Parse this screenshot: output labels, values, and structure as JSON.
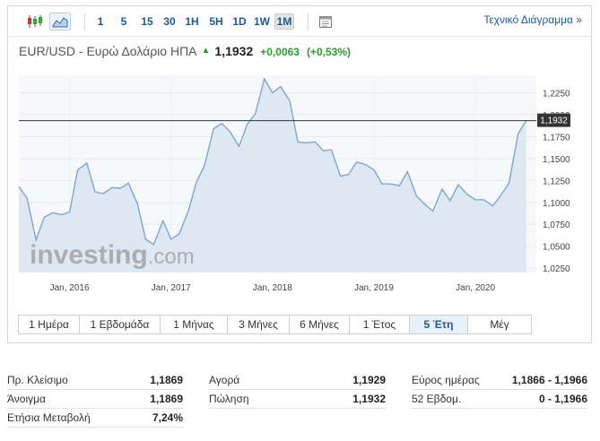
{
  "toolbar": {
    "icons": [
      "candlestick-icon",
      "area-chart-icon",
      "calendar-icon"
    ],
    "timeframes": [
      "1",
      "5",
      "15",
      "30",
      "1H",
      "5H",
      "1D",
      "1W",
      "1M"
    ],
    "active_timeframe": "1M",
    "technical_link": "Τεχνικό Διάγραμμα »"
  },
  "quote": {
    "name": "EUR/USD - Ευρώ Δολάριο ΗΠΑ",
    "last": "1,1932",
    "change": "+0,0063",
    "change_pct": "(+0,53%)",
    "up_color": "#2a9d2a"
  },
  "chart_data": {
    "type": "area",
    "x_ticks": [
      "Jan, 2016",
      "Jan, 2017",
      "Jan, 2018",
      "Jan, 2019",
      "Jan, 2020"
    ],
    "y_ticks": [
      "1,0250",
      "1,0500",
      "1,0750",
      "1,1000",
      "1,1250",
      "1,1500",
      "1,1750",
      "1,2000",
      "1,2250"
    ],
    "ylim": [
      1.02,
      1.245
    ],
    "x_start": 2015.5,
    "x_end": 2020.6,
    "current_value": 1.1932,
    "current_label": "1,1932",
    "watermark": "investing.com",
    "line_color": "#7ea6cf",
    "fill_color": "#dde8f3",
    "series": [
      {
        "values": [
          [
            2015.5,
            1.118
          ],
          [
            2015.58,
            1.105
          ],
          [
            2015.67,
            1.057
          ],
          [
            2015.75,
            1.083
          ],
          [
            2015.83,
            1.088
          ],
          [
            2015.92,
            1.086
          ],
          [
            2016.0,
            1.089
          ],
          [
            2016.08,
            1.137
          ],
          [
            2016.17,
            1.145
          ],
          [
            2016.25,
            1.112
          ],
          [
            2016.33,
            1.11
          ],
          [
            2016.42,
            1.117
          ],
          [
            2016.5,
            1.116
          ],
          [
            2016.58,
            1.122
          ],
          [
            2016.67,
            1.098
          ],
          [
            2016.75,
            1.058
          ],
          [
            2016.83,
            1.052
          ],
          [
            2016.92,
            1.079
          ],
          [
            2017.0,
            1.058
          ],
          [
            2017.08,
            1.064
          ],
          [
            2017.17,
            1.09
          ],
          [
            2017.25,
            1.123
          ],
          [
            2017.33,
            1.142
          ],
          [
            2017.42,
            1.184
          ],
          [
            2017.5,
            1.19
          ],
          [
            2017.58,
            1.181
          ],
          [
            2017.67,
            1.164
          ],
          [
            2017.75,
            1.189
          ],
          [
            2017.83,
            1.201
          ],
          [
            2017.92,
            1.241
          ],
          [
            2018.0,
            1.225
          ],
          [
            2018.08,
            1.232
          ],
          [
            2018.17,
            1.216
          ],
          [
            2018.25,
            1.169
          ],
          [
            2018.33,
            1.168
          ],
          [
            2018.42,
            1.169
          ],
          [
            2018.5,
            1.159
          ],
          [
            2018.58,
            1.16
          ],
          [
            2018.67,
            1.13
          ],
          [
            2018.75,
            1.132
          ],
          [
            2018.83,
            1.146
          ],
          [
            2018.92,
            1.143
          ],
          [
            2019.0,
            1.137
          ],
          [
            2019.08,
            1.121
          ],
          [
            2019.17,
            1.121
          ],
          [
            2019.25,
            1.119
          ],
          [
            2019.33,
            1.135
          ],
          [
            2019.42,
            1.107
          ],
          [
            2019.5,
            1.098
          ],
          [
            2019.58,
            1.09
          ],
          [
            2019.67,
            1.115
          ],
          [
            2019.75,
            1.102
          ],
          [
            2019.83,
            1.12
          ],
          [
            2019.92,
            1.109
          ],
          [
            2020.0,
            1.103
          ],
          [
            2020.08,
            1.103
          ],
          [
            2020.17,
            1.096
          ],
          [
            2020.25,
            1.108
          ],
          [
            2020.33,
            1.122
          ],
          [
            2020.42,
            1.178
          ],
          [
            2020.5,
            1.1932
          ]
        ]
      }
    ]
  },
  "ranges": {
    "items": [
      "1 Ημέρα",
      "1 Εβδομάδα",
      "1 Μήνας",
      "3 Μήνες",
      "6 Μήνες",
      "1 Έτος",
      "5 Έτη",
      "Μέγ"
    ],
    "active": "5 Έτη"
  },
  "stats": {
    "col1": [
      {
        "label": "Πρ. Κλείσιμο",
        "value": "1,1869"
      },
      {
        "label": "Άνοιγμα",
        "value": "1,1869"
      },
      {
        "label": "Ετήσια Μεταβολή",
        "value": "7,24%"
      }
    ],
    "col2": [
      {
        "label": "Αγορά",
        "value": "1,1929"
      },
      {
        "label": "Πώληση",
        "value": "1,1932"
      }
    ],
    "col3": [
      {
        "label": "Εύρος ημέρας",
        "value": "1,1866 - 1,1966"
      },
      {
        "label": "52 Εβδομ.",
        "value": "0 - 1,1966"
      }
    ]
  }
}
